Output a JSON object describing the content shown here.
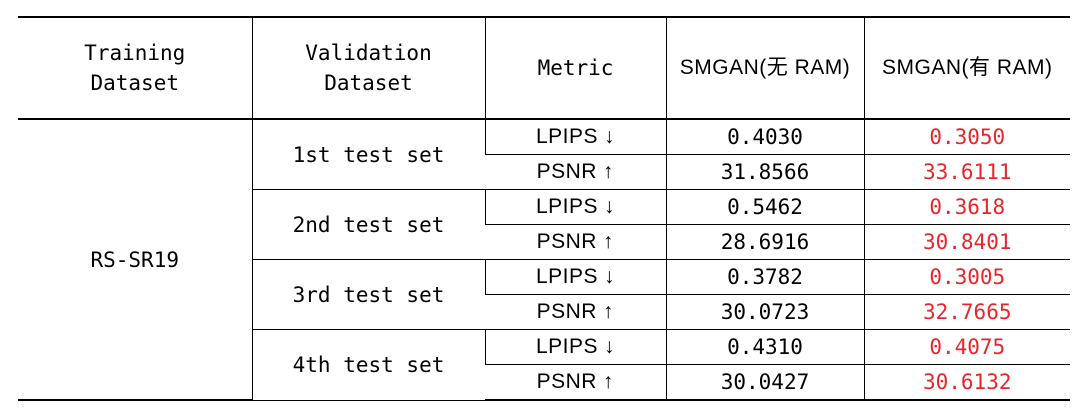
{
  "table": {
    "headers": {
      "training_dataset": "Training\nDataset",
      "validation_dataset": "Validation\nDataset",
      "metric": "Metric",
      "without_ram": "SMGAN(无 RAM)",
      "with_ram": "SMGAN(有 RAM)"
    },
    "training_dataset": "RS-SR19",
    "highlight_color": "#e8262a",
    "arrows": {
      "down": "↓",
      "up": "↑"
    },
    "groups": [
      {
        "validation_dataset": "1st test set",
        "rows": [
          {
            "metric": "LPIPS",
            "direction": "down",
            "without_ram": "0.4030",
            "with_ram": "0.3050"
          },
          {
            "metric": "PSNR",
            "direction": "up",
            "without_ram": "31.8566",
            "with_ram": "33.6111"
          }
        ]
      },
      {
        "validation_dataset": "2nd test set",
        "rows": [
          {
            "metric": "LPIPS",
            "direction": "down",
            "without_ram": "0.5462",
            "with_ram": "0.3618"
          },
          {
            "metric": "PSNR",
            "direction": "up",
            "without_ram": "28.6916",
            "with_ram": "30.8401"
          }
        ]
      },
      {
        "validation_dataset": "3rd test set",
        "rows": [
          {
            "metric": "LPIPS",
            "direction": "down",
            "without_ram": "0.3782",
            "with_ram": "0.3005"
          },
          {
            "metric": "PSNR",
            "direction": "up",
            "without_ram": "30.0723",
            "with_ram": "32.7665"
          }
        ]
      },
      {
        "validation_dataset": "4th test set",
        "rows": [
          {
            "metric": "LPIPS",
            "direction": "down",
            "without_ram": "0.4310",
            "with_ram": "0.4075"
          },
          {
            "metric": "PSNR",
            "direction": "up",
            "without_ram": "30.0427",
            "with_ram": "30.6132"
          }
        ]
      }
    ]
  }
}
